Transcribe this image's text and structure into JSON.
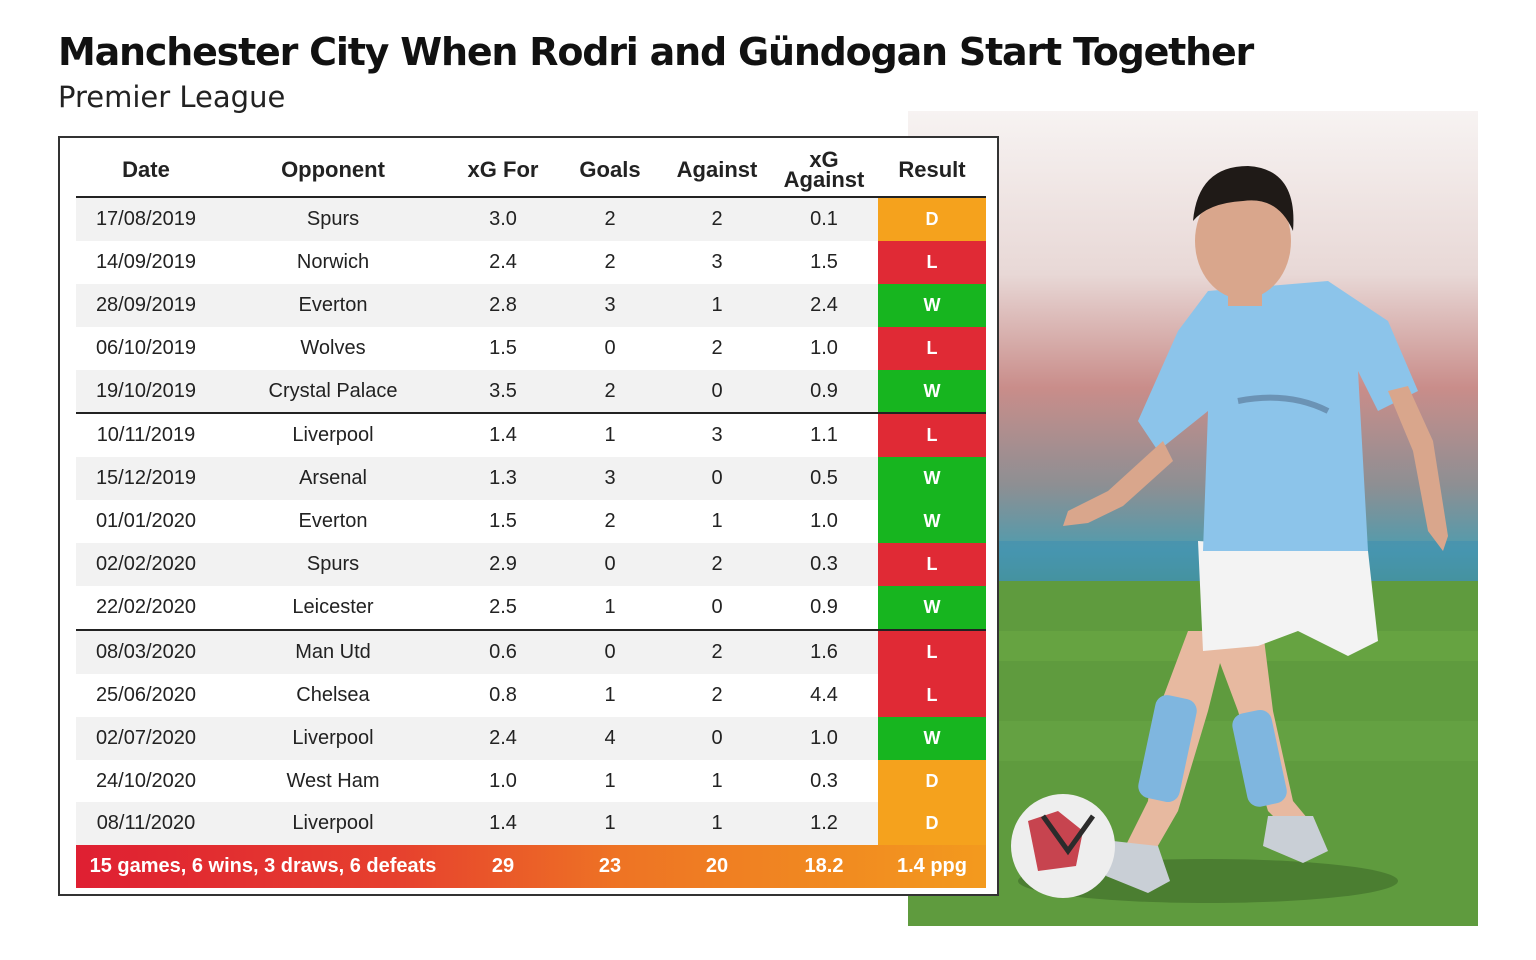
{
  "title": "Manchester City When Rodri and Gündogan Start Together",
  "subtitle": "Premier League",
  "colors": {
    "win": "#17b51f",
    "loss": "#e02a35",
    "draw": "#f5a21d"
  },
  "chart_data": {
    "type": "table",
    "columns": [
      "Date",
      "Opponent",
      "xG For",
      "Goals",
      "Against",
      "xG Against",
      "Result"
    ],
    "rows": [
      {
        "date": "17/08/2019",
        "opponent": "Spurs",
        "xg_for": "3.0",
        "goals": "2",
        "against": "2",
        "xg_against": "0.1",
        "result": "D"
      },
      {
        "date": "14/09/2019",
        "opponent": "Norwich",
        "xg_for": "2.4",
        "goals": "2",
        "against": "3",
        "xg_against": "1.5",
        "result": "L"
      },
      {
        "date": "28/09/2019",
        "opponent": "Everton",
        "xg_for": "2.8",
        "goals": "3",
        "against": "1",
        "xg_against": "2.4",
        "result": "W"
      },
      {
        "date": "06/10/2019",
        "opponent": "Wolves",
        "xg_for": "1.5",
        "goals": "0",
        "against": "2",
        "xg_against": "1.0",
        "result": "L"
      },
      {
        "date": "19/10/2019",
        "opponent": "Crystal Palace",
        "xg_for": "3.5",
        "goals": "2",
        "against": "0",
        "xg_against": "0.9",
        "result": "W"
      },
      {
        "date": "10/11/2019",
        "opponent": "Liverpool",
        "xg_for": "1.4",
        "goals": "1",
        "against": "3",
        "xg_against": "1.1",
        "result": "L"
      },
      {
        "date": "15/12/2019",
        "opponent": "Arsenal",
        "xg_for": "1.3",
        "goals": "3",
        "against": "0",
        "xg_against": "0.5",
        "result": "W"
      },
      {
        "date": "01/01/2020",
        "opponent": "Everton",
        "xg_for": "1.5",
        "goals": "2",
        "against": "1",
        "xg_against": "1.0",
        "result": "W"
      },
      {
        "date": "02/02/2020",
        "opponent": "Spurs",
        "xg_for": "2.9",
        "goals": "0",
        "against": "2",
        "xg_against": "0.3",
        "result": "L"
      },
      {
        "date": "22/02/2020",
        "opponent": "Leicester",
        "xg_for": "2.5",
        "goals": "1",
        "against": "0",
        "xg_against": "0.9",
        "result": "W"
      },
      {
        "date": "08/03/2020",
        "opponent": "Man Utd",
        "xg_for": "0.6",
        "goals": "0",
        "against": "2",
        "xg_against": "1.6",
        "result": "L"
      },
      {
        "date": "25/06/2020",
        "opponent": "Chelsea",
        "xg_for": "0.8",
        "goals": "1",
        "against": "2",
        "xg_against": "4.4",
        "result": "L"
      },
      {
        "date": "02/07/2020",
        "opponent": "Liverpool",
        "xg_for": "2.4",
        "goals": "4",
        "against": "0",
        "xg_against": "1.0",
        "result": "W"
      },
      {
        "date": "24/10/2020",
        "opponent": "West Ham",
        "xg_for": "1.0",
        "goals": "1",
        "against": "1",
        "xg_against": "0.3",
        "result": "D"
      },
      {
        "date": "08/11/2020",
        "opponent": "Liverpool",
        "xg_for": "1.4",
        "goals": "1",
        "against": "1",
        "xg_against": "1.2",
        "result": "D"
      }
    ],
    "totals": {
      "label": "15 games, 6 wins, 3 draws, 6 defeats",
      "xg_for": "29",
      "goals": "23",
      "against": "20",
      "xg_against": "18.2",
      "result": "1.4 ppg"
    }
  }
}
